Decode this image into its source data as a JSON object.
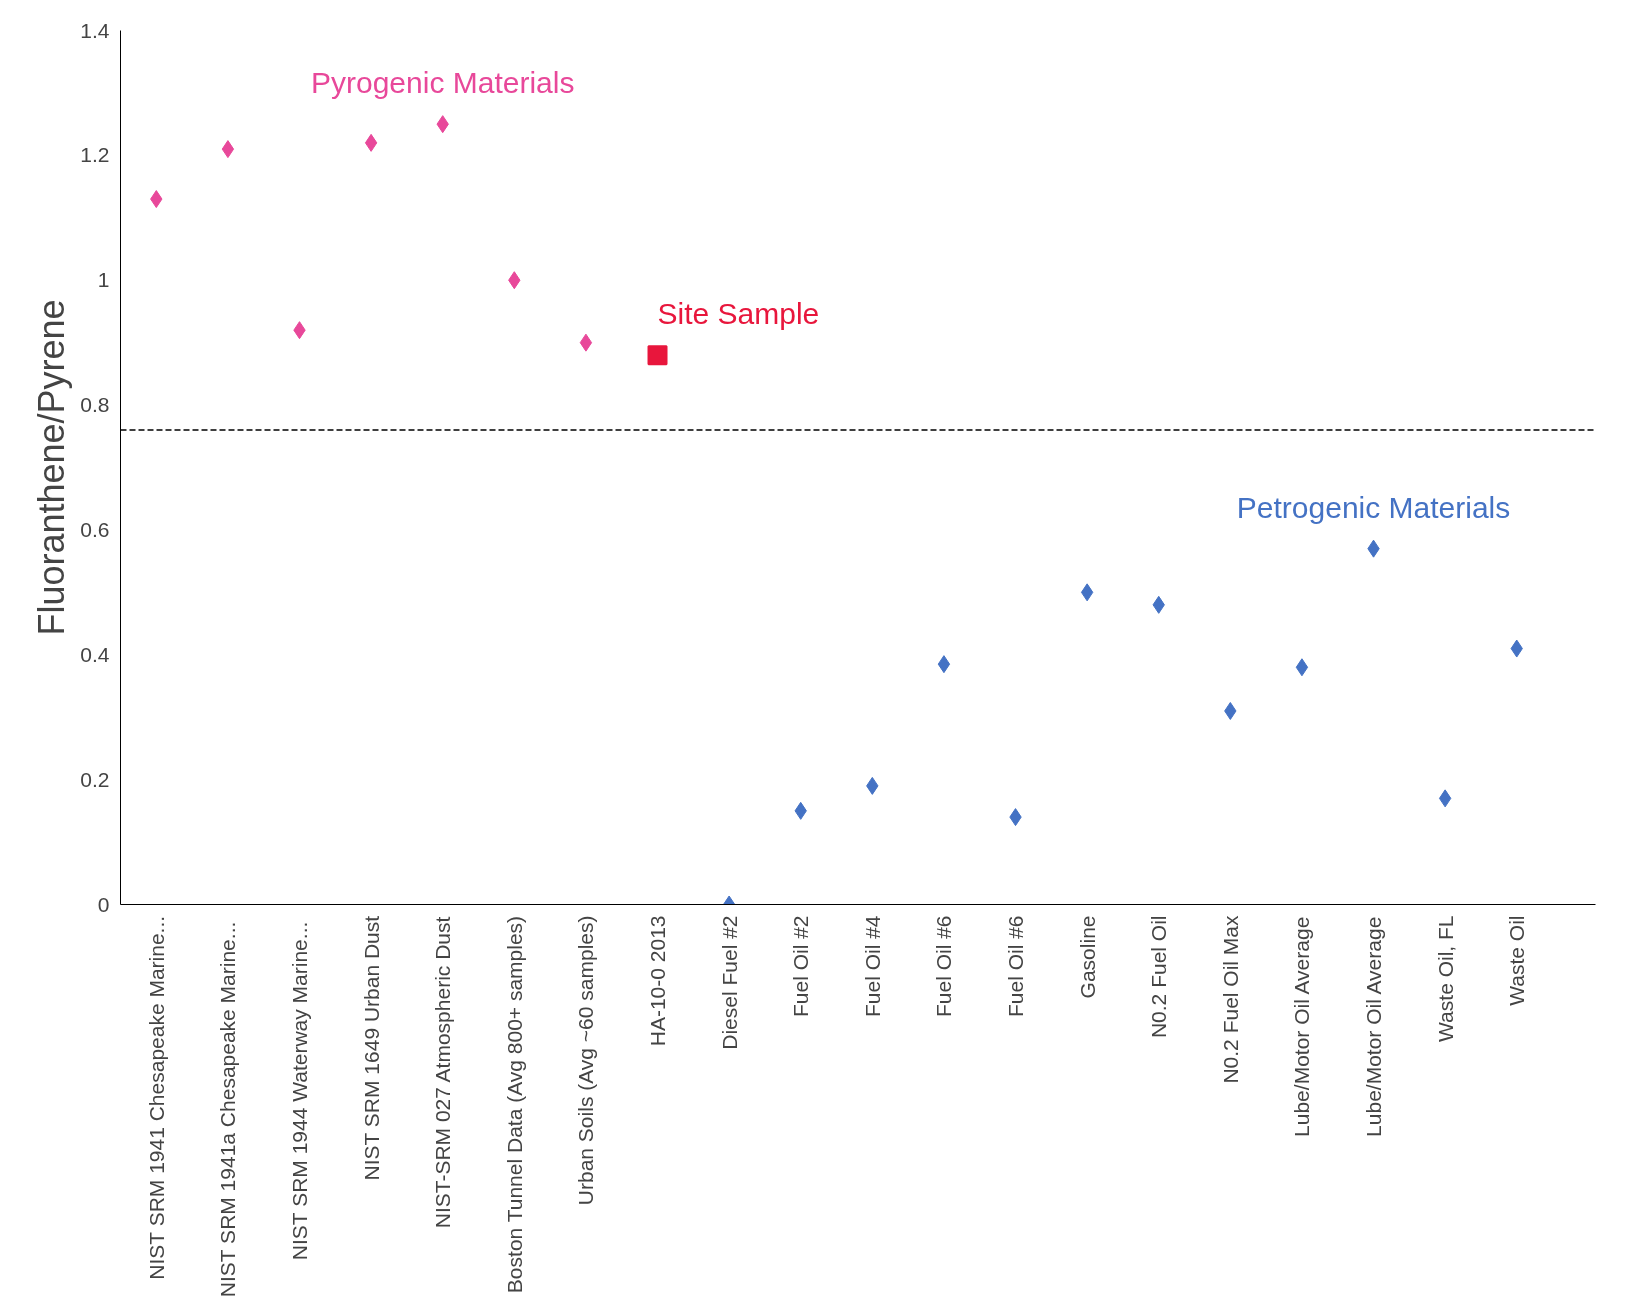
{
  "chart_data": {
    "type": "scatter",
    "ylabel": "Fluoranthene/Pyrene",
    "categories": [
      "NIST SRM 1941 Chesapeake Marine...",
      "NIST SRM 1941a  Chesapeake Marine...",
      "NIST SRM 1944  Waterway Marine...",
      "NIST SRM 1649 Urban Dust",
      "NIST-SRM 027 Atmospheric Dust",
      "Boston Tunnel Data (Avg 800+ samples)",
      "Urban Soils (Avg ~60 samples)",
      "HA-10-0 2013",
      "Diesel Fuel #2",
      "Fuel Oil #2",
      "Fuel Oil #4",
      "Fuel Oil #6",
      "Fuel Oil #6",
      "Gasoline",
      "N0.2 Fuel Oil",
      "N0.2 Fuel Oil Max",
      "Lube/Motor Oil Average",
      "Lube/Motor Oil Average",
      "Waste Oil, FL",
      "Waste Oil"
    ],
    "series": [
      {
        "name": "Pyrogenic Materials",
        "color": "#e8489a",
        "marker": "diamond",
        "values": [
          1.13,
          1.21,
          0.92,
          1.22,
          1.25,
          1.0,
          0.9,
          null,
          null,
          null,
          null,
          null,
          null,
          null,
          null,
          null,
          null,
          null,
          null,
          null
        ]
      },
      {
        "name": "Site Sample",
        "color": "#e8163c",
        "marker": "square",
        "values": [
          null,
          null,
          null,
          null,
          null,
          null,
          null,
          0.88,
          null,
          null,
          null,
          null,
          null,
          null,
          null,
          null,
          null,
          null,
          null,
          null
        ]
      },
      {
        "name": "Petrogenic Materials",
        "color": "#4472c4",
        "marker": "diamond",
        "values": [
          null,
          null,
          null,
          null,
          null,
          null,
          null,
          null,
          0.0,
          0.15,
          0.19,
          0.385,
          0.14,
          0.5,
          0.48,
          0.31,
          0.38,
          0.57,
          0.17,
          0.41
        ]
      }
    ],
    "ylim": [
      0,
      1.4
    ],
    "yticks": [
      0,
      0.2,
      0.4,
      0.6,
      0.8,
      1,
      1.2,
      1.4
    ],
    "ref_lines": [
      {
        "axis": "y",
        "value": 0.76,
        "color": "#000000",
        "line_style": "dashed"
      }
    ],
    "grid": false
  }
}
